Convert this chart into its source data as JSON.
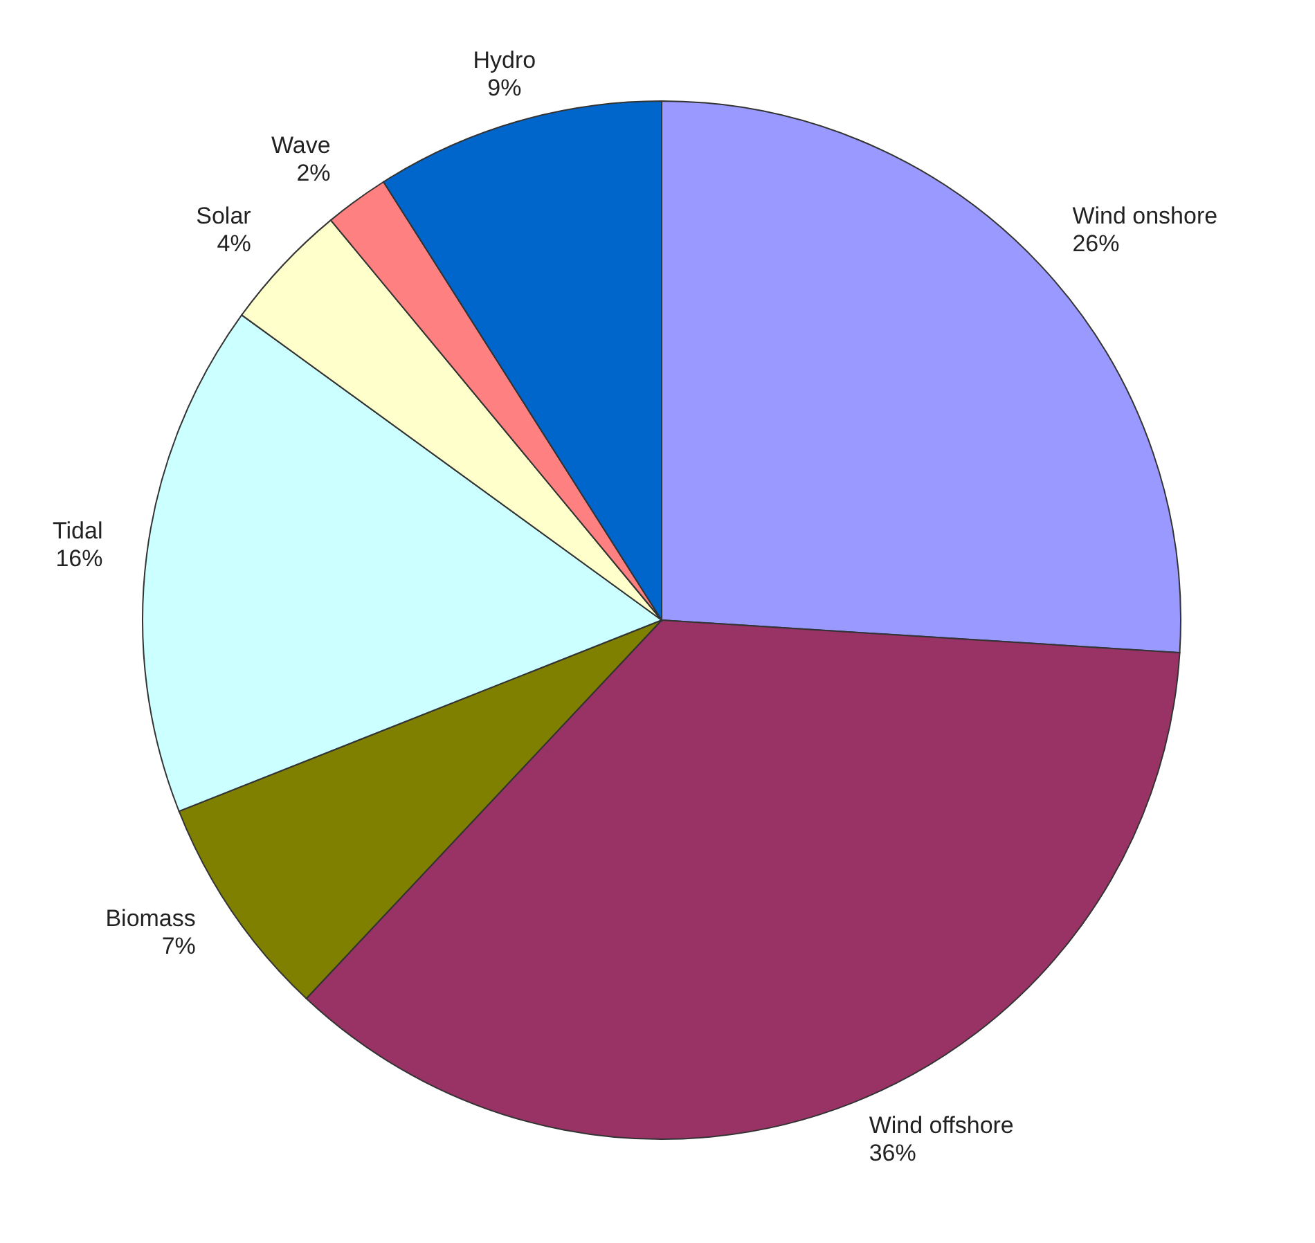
{
  "chart_data": {
    "type": "pie",
    "categories": [
      "Wind onshore",
      "Wind offshore",
      "Biomass",
      "Tidal",
      "Solar",
      "Wave",
      "Hydro"
    ],
    "values": [
      26,
      36,
      7,
      16,
      4,
      2,
      9
    ],
    "value_labels": [
      "26%",
      "36%",
      "7%",
      "16%",
      "4%",
      "2%",
      "9%"
    ],
    "colors": [
      "#9999ff",
      "#993366",
      "#808000",
      "#ccffff",
      "#ffffcc",
      "#ff8080",
      "#0066cc"
    ],
    "legend": false
  }
}
